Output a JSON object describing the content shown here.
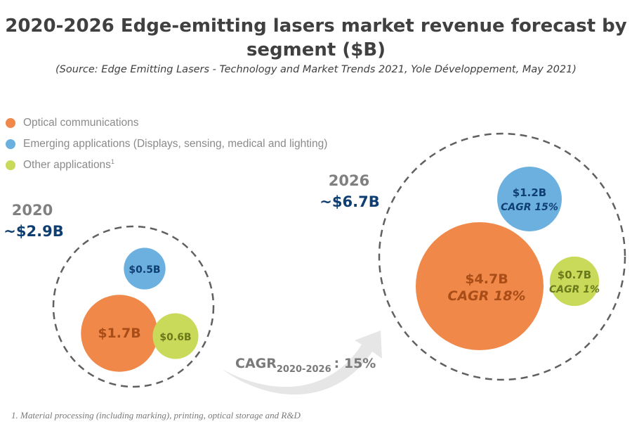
{
  "chart_data": {
    "type": "bubble",
    "title": "2020-2026 Edge-emitting lasers market revenue forecast by segment ($B)",
    "subtitle": "(Source: Edge Emitting Lasers - Technology and Market Trends 2021, Yole Développement, May 2021)",
    "unit": "$B",
    "legend": [
      {
        "name": "Optical communications",
        "color": "#f0884a"
      },
      {
        "name": "Emerging applications (Displays, sensing, medical and lighting)",
        "color": "#6cb0e0"
      },
      {
        "name": "Other applications",
        "superscript": "1",
        "color": "#c9d95a"
      }
    ],
    "years": [
      {
        "year": "2020",
        "total": 2.9,
        "total_label": "~$2.9B",
        "segments": [
          {
            "name": "Optical communications",
            "value": 1.7,
            "label": "$1.7B",
            "cagr_label": ""
          },
          {
            "name": "Emerging applications",
            "value": 0.5,
            "label": "$0.5B",
            "cagr_label": ""
          },
          {
            "name": "Other applications",
            "value": 0.6,
            "label": "$0.6B",
            "cagr_label": ""
          }
        ]
      },
      {
        "year": "2026",
        "total": 6.7,
        "total_label": "~$6.7B",
        "segments": [
          {
            "name": "Optical communications",
            "value": 4.7,
            "label": "$4.7B",
            "cagr": 18,
            "cagr_label": "CAGR 18%"
          },
          {
            "name": "Emerging applications",
            "value": 1.2,
            "label": "$1.2B",
            "cagr": 15,
            "cagr_label": "CAGR 15%"
          },
          {
            "name": "Other applications",
            "value": 0.7,
            "label": "$0.7B",
            "cagr": 1,
            "cagr_label": "CAGR 1%"
          }
        ]
      }
    ],
    "overall_cagr": {
      "prefix": "CAGR",
      "period": "2020-2026",
      "value": 15,
      "label": ": 15%"
    },
    "footnote": "1. Material processing (including marking), printing, optical storage and R&D"
  },
  "colors": {
    "optical": "#f0884a",
    "optical_text": "#a84d17",
    "emerging": "#6cb0e0",
    "emerging_text": "#0f3f72",
    "other": "#c9d95a",
    "other_text": "#6a7a1a",
    "year_text": "#808080",
    "total_text": "#0f3f72",
    "dashed": "#606060",
    "arrow": "#e6e6e6"
  }
}
